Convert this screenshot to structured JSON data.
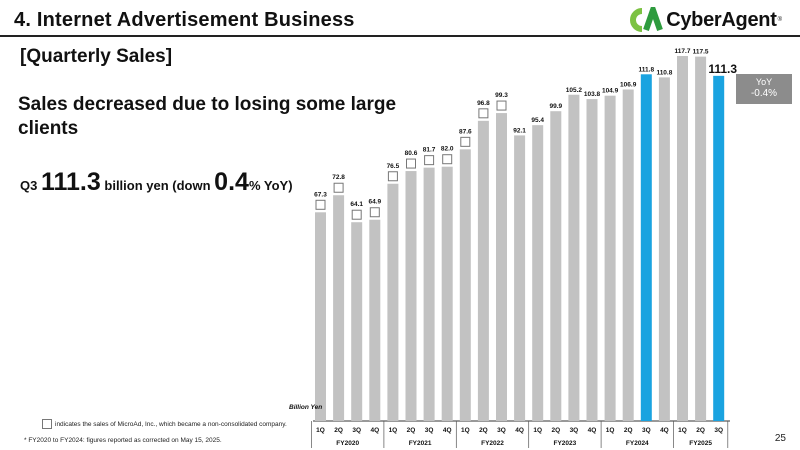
{
  "header": {
    "title": "4. Internet Advertisement Business",
    "logo_text": "CyberAgent",
    "logo_reg": "®",
    "logo_icon": "cyberagent-logo-icon"
  },
  "section_title": "[Quarterly Sales]",
  "headline": "Sales decreased due to losing some large clients",
  "summary": {
    "prefix": "Q3 ",
    "amount": "111.3",
    "middle": " billion yen (down ",
    "pct": "0.4",
    "suffix": "% YoY)"
  },
  "yoy_badge": {
    "label": "YoY",
    "value": "-0.4%"
  },
  "legend_text": "indicates the sales of MicroAd, Inc., which became a non-consolidated company.",
  "footnote": "*  FY2020 to FY2024: figures reported as corrected on May 15, 2025.",
  "page_number": "25",
  "colors": {
    "bar_gray": "#c2c2c2",
    "bar_blue": "#1aa3e0",
    "axis": "#333333"
  },
  "chart_data": {
    "type": "bar",
    "title": "",
    "ylabel": "Billion Yen",
    "ylim": [
      0,
      117.7
    ],
    "grid": false,
    "categories": [
      "1Q",
      "2Q",
      "3Q",
      "4Q",
      "1Q",
      "2Q",
      "3Q",
      "4Q",
      "1Q",
      "2Q",
      "3Q",
      "4Q",
      "1Q",
      "2Q",
      "3Q",
      "4Q",
      "1Q",
      "2Q",
      "3Q",
      "4Q",
      "1Q",
      "2Q",
      "3Q"
    ],
    "groups": [
      {
        "label": "FY2020",
        "count": 4
      },
      {
        "label": "FY2021",
        "count": 4
      },
      {
        "label": "FY2022",
        "count": 4
      },
      {
        "label": "FY2023",
        "count": 4
      },
      {
        "label": "FY2024",
        "count": 4
      },
      {
        "label": "FY2025",
        "count": 3
      }
    ],
    "values": [
      67.3,
      72.8,
      64.1,
      64.9,
      76.5,
      80.6,
      81.7,
      82.0,
      87.6,
      96.8,
      99.3,
      92.1,
      95.4,
      99.9,
      105.2,
      103.8,
      104.9,
      106.9,
      111.8,
      110.8,
      117.7,
      117.5,
      111.3
    ],
    "labels": [
      "67.3",
      "72.8",
      "64.1",
      "64.9",
      "76.5",
      "80.6",
      "81.7",
      "82.0",
      "87.6",
      "96.8",
      "99.3",
      "92.1",
      "95.4",
      "99.9",
      "105.2",
      "103.8",
      "104.9",
      "106.9",
      "111.8",
      "110.8",
      "117.7",
      "117.5",
      "111.3"
    ],
    "highlighted": [
      false,
      false,
      false,
      false,
      false,
      false,
      false,
      false,
      false,
      false,
      false,
      false,
      false,
      false,
      false,
      false,
      false,
      false,
      true,
      false,
      false,
      false,
      true
    ],
    "microad_marker": [
      true,
      true,
      true,
      true,
      true,
      true,
      true,
      true,
      true,
      true,
      true,
      false,
      false,
      false,
      false,
      false,
      false,
      false,
      false,
      false,
      false,
      false,
      false
    ]
  }
}
